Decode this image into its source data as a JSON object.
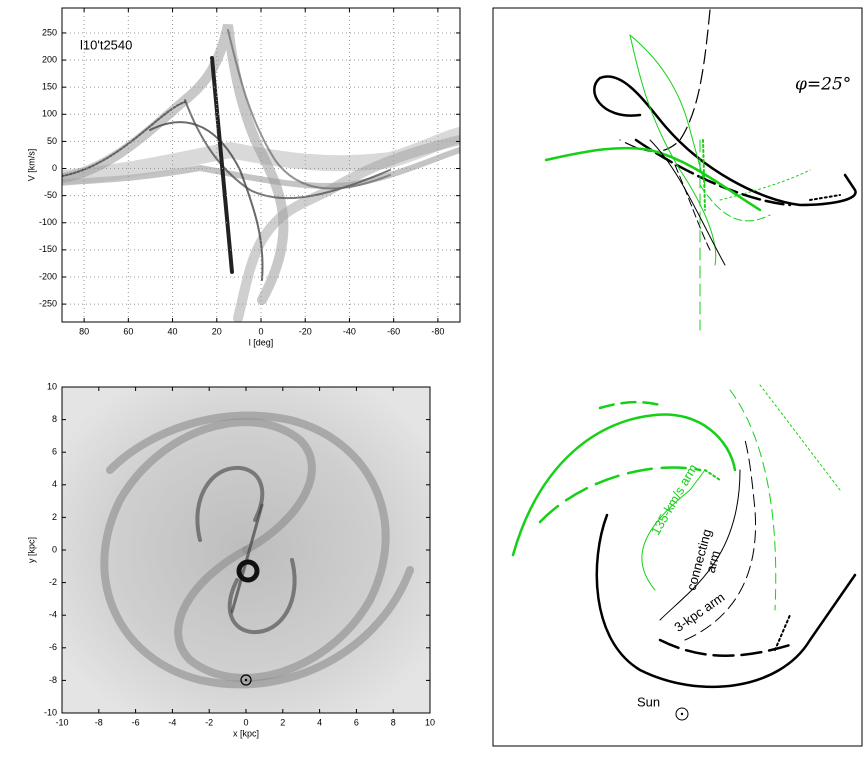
{
  "panels": [
    {
      "label": "l10't2540",
      "xlabel": "l [deg]",
      "ylabel": "V [km/s]",
      "xlim": [
        90,
        -90
      ],
      "ylim": [
        -283,
        296
      ],
      "xticks": [
        80,
        60,
        40,
        20,
        0,
        -20,
        -40,
        -60,
        -80
      ],
      "yticks": [
        -250,
        -200,
        -150,
        -100,
        -50,
        0,
        50,
        100,
        150,
        200,
        250
      ],
      "grid": true
    },
    {
      "xlabel": "x [kpc]",
      "ylabel": "y [kpc]",
      "xlim": [
        -10,
        10
      ],
      "ylim": [
        -10,
        10
      ],
      "xticks": [
        -10,
        -8,
        -6,
        -4,
        -2,
        0,
        2,
        4,
        6,
        8,
        10
      ],
      "yticks": [
        -10,
        -8,
        -6,
        -4,
        -2,
        0,
        2,
        4,
        6,
        8,
        10
      ],
      "grid": false
    }
  ],
  "diagram": {
    "angle_label": "φ=25°",
    "arm_135": "135-km/s arm",
    "connecting_1": "connecting",
    "connecting_2": "arm",
    "arm_3kpc": "3-kpc arm",
    "sun": "Sun"
  }
}
